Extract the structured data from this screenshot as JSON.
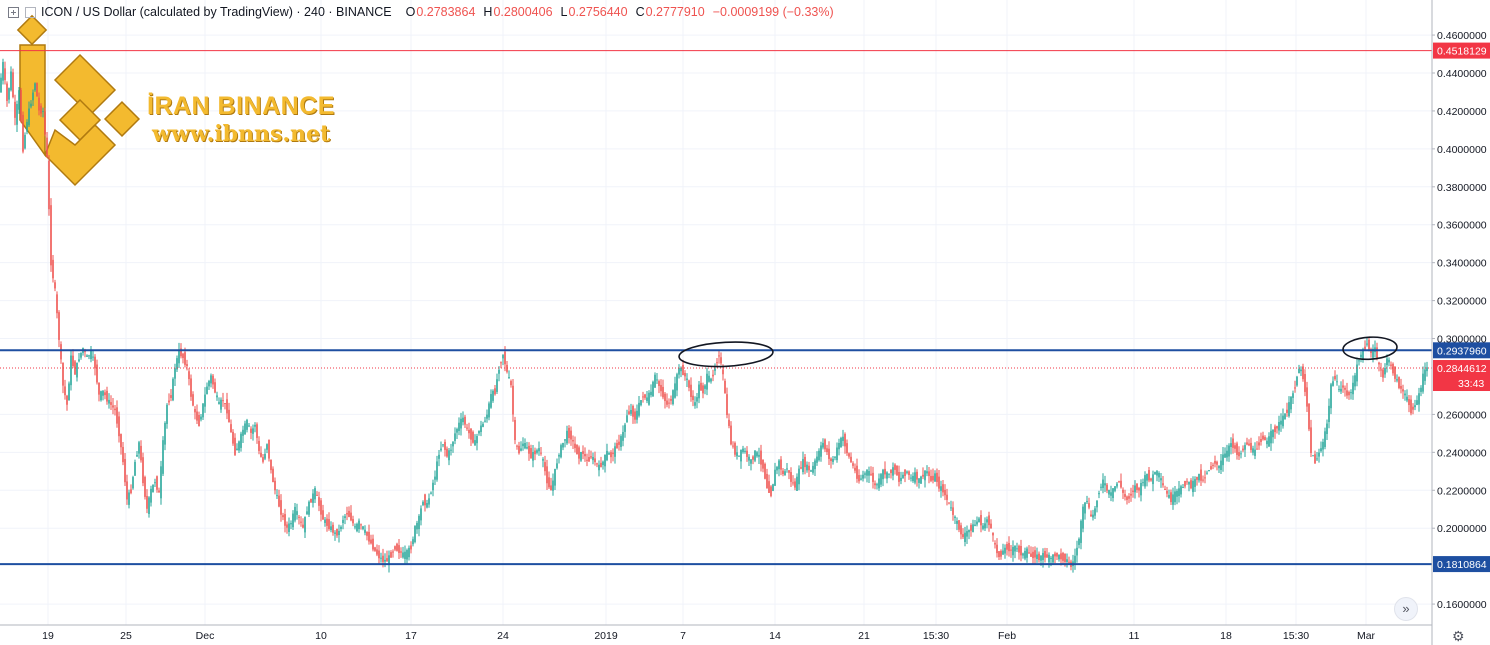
{
  "header": {
    "symbol": "ICON / US Dollar (calculated by TradingView) · 240 · BINANCE",
    "o_label": "O",
    "o": "0.2783864",
    "h_label": "H",
    "h": "0.2800406",
    "l_label": "L",
    "l": "0.2756440",
    "c_label": "C",
    "c": "0.2777910",
    "change": "−0.0009199 (−0.33%)"
  },
  "watermark": {
    "name": "İRAN BINANCE",
    "site": "www.ibnns.net"
  },
  "colors": {
    "up": "#26a69a",
    "down": "#ef5350",
    "support_resistance": "#1e4fa1",
    "top_line": "#f23645",
    "price_label": "#f23645",
    "logo": "#f3ba2f"
  },
  "icons": {
    "forward": "double-chevron-right-icon",
    "settings": "gear-icon"
  },
  "chart_data": {
    "type": "candlestick",
    "y_axis_ticks": [
      "0.4600000",
      "0.4400000",
      "0.4200000",
      "0.4000000",
      "0.3800000",
      "0.3600000",
      "0.3400000",
      "0.3200000",
      "0.3000000",
      "0.2600000",
      "0.2400000",
      "0.2200000",
      "0.2000000",
      "0.1600000"
    ],
    "ylim": [
      0.15,
      0.48
    ],
    "x_axis_ticks": [
      "19",
      "25",
      "Dec",
      "10",
      "17",
      "24",
      "2019",
      "7",
      "14",
      "21",
      "15:30",
      "Feb",
      "11",
      "18",
      "15:30",
      "Mar"
    ],
    "horizontal_lines": [
      {
        "name": "resistance-top",
        "value": 0.4518129,
        "label": "0.4518129",
        "color": "#f23645"
      },
      {
        "name": "resistance",
        "value": 0.293796,
        "label": "0.2937960",
        "color": "#1e4fa1"
      },
      {
        "name": "support",
        "value": 0.1810864,
        "label": "0.1810864",
        "color": "#1e4fa1"
      }
    ],
    "current_price": {
      "value": 0.2844612,
      "label": "0.2844612",
      "countdown": "33:43"
    },
    "price_path": [
      [
        0,
        0.43
      ],
      [
        4,
        0.445
      ],
      [
        8,
        0.425
      ],
      [
        12,
        0.44
      ],
      [
        16,
        0.415
      ],
      [
        20,
        0.43
      ],
      [
        24,
        0.4
      ],
      [
        28,
        0.415
      ],
      [
        32,
        0.425
      ],
      [
        36,
        0.435
      ],
      [
        40,
        0.42
      ],
      [
        44,
        0.42
      ],
      [
        48,
        0.395
      ],
      [
        52,
        0.34
      ],
      [
        56,
        0.325
      ],
      [
        60,
        0.3
      ],
      [
        64,
        0.275
      ],
      [
        68,
        0.265
      ],
      [
        72,
        0.29
      ],
      [
        76,
        0.282
      ],
      [
        80,
        0.29
      ],
      [
        84,
        0.295
      ],
      [
        88,
        0.29
      ],
      [
        92,
        0.293
      ],
      [
        96,
        0.285
      ],
      [
        100,
        0.27
      ],
      [
        104,
        0.272
      ],
      [
        108,
        0.268
      ],
      [
        112,
        0.265
      ],
      [
        116,
        0.262
      ],
      [
        120,
        0.25
      ],
      [
        124,
        0.235
      ],
      [
        128,
        0.215
      ],
      [
        132,
        0.22
      ],
      [
        136,
        0.235
      ],
      [
        140,
        0.245
      ],
      [
        144,
        0.225
      ],
      [
        148,
        0.21
      ],
      [
        152,
        0.22
      ],
      [
        156,
        0.225
      ],
      [
        160,
        0.218
      ],
      [
        164,
        0.245
      ],
      [
        168,
        0.265
      ],
      [
        172,
        0.27
      ],
      [
        176,
        0.285
      ],
      [
        180,
        0.293
      ],
      [
        184,
        0.29
      ],
      [
        188,
        0.285
      ],
      [
        192,
        0.27
      ],
      [
        196,
        0.26
      ],
      [
        200,
        0.255
      ],
      [
        204,
        0.265
      ],
      [
        208,
        0.275
      ],
      [
        212,
        0.28
      ],
      [
        216,
        0.272
      ],
      [
        220,
        0.265
      ],
      [
        224,
        0.268
      ],
      [
        228,
        0.262
      ],
      [
        232,
        0.25
      ],
      [
        236,
        0.24
      ],
      [
        240,
        0.245
      ],
      [
        244,
        0.252
      ],
      [
        248,
        0.256
      ],
      [
        252,
        0.25
      ],
      [
        256,
        0.255
      ],
      [
        260,
        0.24
      ],
      [
        264,
        0.235
      ],
      [
        268,
        0.245
      ],
      [
        272,
        0.23
      ],
      [
        276,
        0.22
      ],
      [
        280,
        0.212
      ],
      [
        284,
        0.205
      ],
      [
        288,
        0.2
      ],
      [
        292,
        0.203
      ],
      [
        296,
        0.21
      ],
      [
        300,
        0.205
      ],
      [
        304,
        0.2
      ],
      [
        308,
        0.21
      ],
      [
        312,
        0.215
      ],
      [
        316,
        0.22
      ],
      [
        320,
        0.212
      ],
      [
        324,
        0.205
      ],
      [
        328,
        0.202
      ],
      [
        332,
        0.2
      ],
      [
        336,
        0.197
      ],
      [
        340,
        0.198
      ],
      [
        344,
        0.205
      ],
      [
        348,
        0.208
      ],
      [
        352,
        0.205
      ],
      [
        356,
        0.2
      ],
      [
        360,
        0.203
      ],
      [
        364,
        0.2
      ],
      [
        368,
        0.196
      ],
      [
        372,
        0.192
      ],
      [
        376,
        0.188
      ],
      [
        380,
        0.185
      ],
      [
        384,
        0.183
      ],
      [
        388,
        0.183
      ],
      [
        392,
        0.186
      ],
      [
        396,
        0.19
      ],
      [
        400,
        0.188
      ],
      [
        404,
        0.186
      ],
      [
        408,
        0.187
      ],
      [
        412,
        0.19
      ],
      [
        416,
        0.2
      ],
      [
        420,
        0.205
      ],
      [
        424,
        0.215
      ],
      [
        428,
        0.212
      ],
      [
        432,
        0.22
      ],
      [
        436,
        0.228
      ],
      [
        440,
        0.24
      ],
      [
        444,
        0.245
      ],
      [
        448,
        0.238
      ],
      [
        452,
        0.242
      ],
      [
        456,
        0.25
      ],
      [
        460,
        0.255
      ],
      [
        464,
        0.258
      ],
      [
        468,
        0.252
      ],
      [
        472,
        0.248
      ],
      [
        476,
        0.245
      ],
      [
        480,
        0.252
      ],
      [
        484,
        0.255
      ],
      [
        488,
        0.26
      ],
      [
        492,
        0.27
      ],
      [
        496,
        0.272
      ],
      [
        500,
        0.285
      ],
      [
        504,
        0.292
      ],
      [
        508,
        0.282
      ],
      [
        512,
        0.275
      ],
      [
        516,
        0.245
      ],
      [
        520,
        0.24
      ],
      [
        524,
        0.245
      ],
      [
        528,
        0.242
      ],
      [
        532,
        0.238
      ],
      [
        536,
        0.24
      ],
      [
        540,
        0.242
      ],
      [
        544,
        0.235
      ],
      [
        548,
        0.225
      ],
      [
        552,
        0.22
      ],
      [
        556,
        0.23
      ],
      [
        560,
        0.24
      ],
      [
        564,
        0.245
      ],
      [
        568,
        0.25
      ],
      [
        572,
        0.248
      ],
      [
        576,
        0.242
      ],
      [
        580,
        0.238
      ],
      [
        584,
        0.24
      ],
      [
        588,
        0.235
      ],
      [
        592,
        0.238
      ],
      [
        596,
        0.235
      ],
      [
        600,
        0.232
      ],
      [
        604,
        0.235
      ],
      [
        608,
        0.24
      ],
      [
        612,
        0.238
      ],
      [
        616,
        0.242
      ],
      [
        620,
        0.245
      ],
      [
        624,
        0.25
      ],
      [
        628,
        0.26
      ],
      [
        632,
        0.262
      ],
      [
        636,
        0.258
      ],
      [
        640,
        0.265
      ],
      [
        644,
        0.27
      ],
      [
        648,
        0.268
      ],
      [
        652,
        0.272
      ],
      [
        656,
        0.28
      ],
      [
        660,
        0.275
      ],
      [
        664,
        0.27
      ],
      [
        668,
        0.265
      ],
      [
        672,
        0.268
      ],
      [
        676,
        0.275
      ],
      [
        680,
        0.285
      ],
      [
        684,
        0.282
      ],
      [
        688,
        0.278
      ],
      [
        692,
        0.27
      ],
      [
        696,
        0.265
      ],
      [
        700,
        0.275
      ],
      [
        704,
        0.272
      ],
      [
        708,
        0.28
      ],
      [
        712,
        0.278
      ],
      [
        716,
        0.285
      ],
      [
        720,
        0.292
      ],
      [
        724,
        0.28
      ],
      [
        728,
        0.26
      ],
      [
        732,
        0.245
      ],
      [
        736,
        0.24
      ],
      [
        740,
        0.238
      ],
      [
        744,
        0.242
      ],
      [
        748,
        0.238
      ],
      [
        752,
        0.235
      ],
      [
        756,
        0.24
      ],
      [
        760,
        0.238
      ],
      [
        764,
        0.232
      ],
      [
        768,
        0.222
      ],
      [
        772,
        0.218
      ],
      [
        776,
        0.23
      ],
      [
        780,
        0.235
      ],
      [
        784,
        0.228
      ],
      [
        788,
        0.232
      ],
      [
        792,
        0.225
      ],
      [
        796,
        0.222
      ],
      [
        800,
        0.23
      ],
      [
        804,
        0.235
      ],
      [
        808,
        0.232
      ],
      [
        812,
        0.23
      ],
      [
        816,
        0.235
      ],
      [
        820,
        0.24
      ],
      [
        824,
        0.245
      ],
      [
        828,
        0.24
      ],
      [
        832,
        0.235
      ],
      [
        836,
        0.238
      ],
      [
        840,
        0.245
      ],
      [
        844,
        0.248
      ],
      [
        848,
        0.24
      ],
      [
        852,
        0.235
      ],
      [
        856,
        0.23
      ],
      [
        860,
        0.225
      ],
      [
        864,
        0.228
      ],
      [
        868,
        0.23
      ],
      [
        872,
        0.228
      ],
      [
        876,
        0.222
      ],
      [
        880,
        0.225
      ],
      [
        884,
        0.23
      ],
      [
        888,
        0.228
      ],
      [
        892,
        0.23
      ],
      [
        896,
        0.232
      ],
      [
        900,
        0.225
      ],
      [
        904,
        0.228
      ],
      [
        908,
        0.23
      ],
      [
        912,
        0.226
      ],
      [
        916,
        0.228
      ],
      [
        920,
        0.225
      ],
      [
        924,
        0.228
      ],
      [
        928,
        0.23
      ],
      [
        932,
        0.225
      ],
      [
        936,
        0.228
      ],
      [
        940,
        0.222
      ],
      [
        944,
        0.22
      ],
      [
        948,
        0.215
      ],
      [
        952,
        0.21
      ],
      [
        956,
        0.205
      ],
      [
        960,
        0.2
      ],
      [
        964,
        0.195
      ],
      [
        968,
        0.198
      ],
      [
        972,
        0.2
      ],
      [
        976,
        0.202
      ],
      [
        980,
        0.205
      ],
      [
        984,
        0.2
      ],
      [
        988,
        0.205
      ],
      [
        992,
        0.2
      ],
      [
        996,
        0.19
      ],
      [
        1000,
        0.185
      ],
      [
        1004,
        0.188
      ],
      [
        1008,
        0.19
      ],
      [
        1012,
        0.188
      ],
      [
        1016,
        0.19
      ],
      [
        1020,
        0.188
      ],
      [
        1024,
        0.186
      ],
      [
        1028,
        0.188
      ],
      [
        1032,
        0.185
      ],
      [
        1036,
        0.186
      ],
      [
        1040,
        0.184
      ],
      [
        1044,
        0.186
      ],
      [
        1048,
        0.185
      ],
      [
        1052,
        0.184
      ],
      [
        1056,
        0.186
      ],
      [
        1060,
        0.185
      ],
      [
        1064,
        0.184
      ],
      [
        1068,
        0.183
      ],
      [
        1072,
        0.18
      ],
      [
        1076,
        0.185
      ],
      [
        1080,
        0.195
      ],
      [
        1084,
        0.21
      ],
      [
        1088,
        0.215
      ],
      [
        1092,
        0.205
      ],
      [
        1096,
        0.21
      ],
      [
        1100,
        0.22
      ],
      [
        1104,
        0.225
      ],
      [
        1108,
        0.22
      ],
      [
        1112,
        0.218
      ],
      [
        1116,
        0.222
      ],
      [
        1120,
        0.225
      ],
      [
        1124,
        0.218
      ],
      [
        1128,
        0.215
      ],
      [
        1132,
        0.218
      ],
      [
        1136,
        0.222
      ],
      [
        1140,
        0.22
      ],
      [
        1144,
        0.225
      ],
      [
        1148,
        0.228
      ],
      [
        1152,
        0.225
      ],
      [
        1156,
        0.23
      ],
      [
        1160,
        0.228
      ],
      [
        1164,
        0.222
      ],
      [
        1168,
        0.218
      ],
      [
        1172,
        0.215
      ],
      [
        1176,
        0.218
      ],
      [
        1180,
        0.22
      ],
      [
        1184,
        0.222
      ],
      [
        1188,
        0.225
      ],
      [
        1192,
        0.222
      ],
      [
        1196,
        0.225
      ],
      [
        1200,
        0.228
      ],
      [
        1204,
        0.225
      ],
      [
        1208,
        0.23
      ],
      [
        1212,
        0.232
      ],
      [
        1216,
        0.235
      ],
      [
        1220,
        0.232
      ],
      [
        1224,
        0.238
      ],
      [
        1228,
        0.24
      ],
      [
        1232,
        0.245
      ],
      [
        1236,
        0.242
      ],
      [
        1240,
        0.238
      ],
      [
        1244,
        0.242
      ],
      [
        1248,
        0.245
      ],
      [
        1252,
        0.242
      ],
      [
        1256,
        0.24
      ],
      [
        1260,
        0.245
      ],
      [
        1264,
        0.248
      ],
      [
        1268,
        0.245
      ],
      [
        1272,
        0.25
      ],
      [
        1276,
        0.252
      ],
      [
        1280,
        0.255
      ],
      [
        1284,
        0.258
      ],
      [
        1288,
        0.262
      ],
      [
        1292,
        0.268
      ],
      [
        1296,
        0.275
      ],
      [
        1300,
        0.285
      ],
      [
        1304,
        0.28
      ],
      [
        1308,
        0.265
      ],
      [
        1312,
        0.24
      ],
      [
        1316,
        0.235
      ],
      [
        1320,
        0.24
      ],
      [
        1324,
        0.245
      ],
      [
        1328,
        0.255
      ],
      [
        1332,
        0.275
      ],
      [
        1336,
        0.28
      ],
      [
        1340,
        0.272
      ],
      [
        1344,
        0.275
      ],
      [
        1348,
        0.27
      ],
      [
        1352,
        0.272
      ],
      [
        1356,
        0.28
      ],
      [
        1360,
        0.29
      ],
      [
        1364,
        0.293
      ],
      [
        1368,
        0.298
      ],
      [
        1372,
        0.292
      ],
      [
        1376,
        0.295
      ],
      [
        1380,
        0.285
      ],
      [
        1384,
        0.28
      ],
      [
        1388,
        0.29
      ],
      [
        1392,
        0.285
      ],
      [
        1396,
        0.28
      ],
      [
        1400,
        0.275
      ],
      [
        1404,
        0.272
      ],
      [
        1408,
        0.268
      ],
      [
        1412,
        0.262
      ],
      [
        1416,
        0.265
      ],
      [
        1420,
        0.27
      ],
      [
        1424,
        0.28
      ],
      [
        1428,
        0.285
      ]
    ],
    "annotations": [
      {
        "name": "ellipse-mid",
        "shape": "ellipse",
        "cx_date_index": 726,
        "cy": 0.2917,
        "rx": 47,
        "ry": 12
      },
      {
        "name": "ellipse-right",
        "shape": "ellipse",
        "cx_date_index": 1370,
        "cy": 0.2949,
        "rx": 27,
        "ry": 11
      }
    ]
  }
}
